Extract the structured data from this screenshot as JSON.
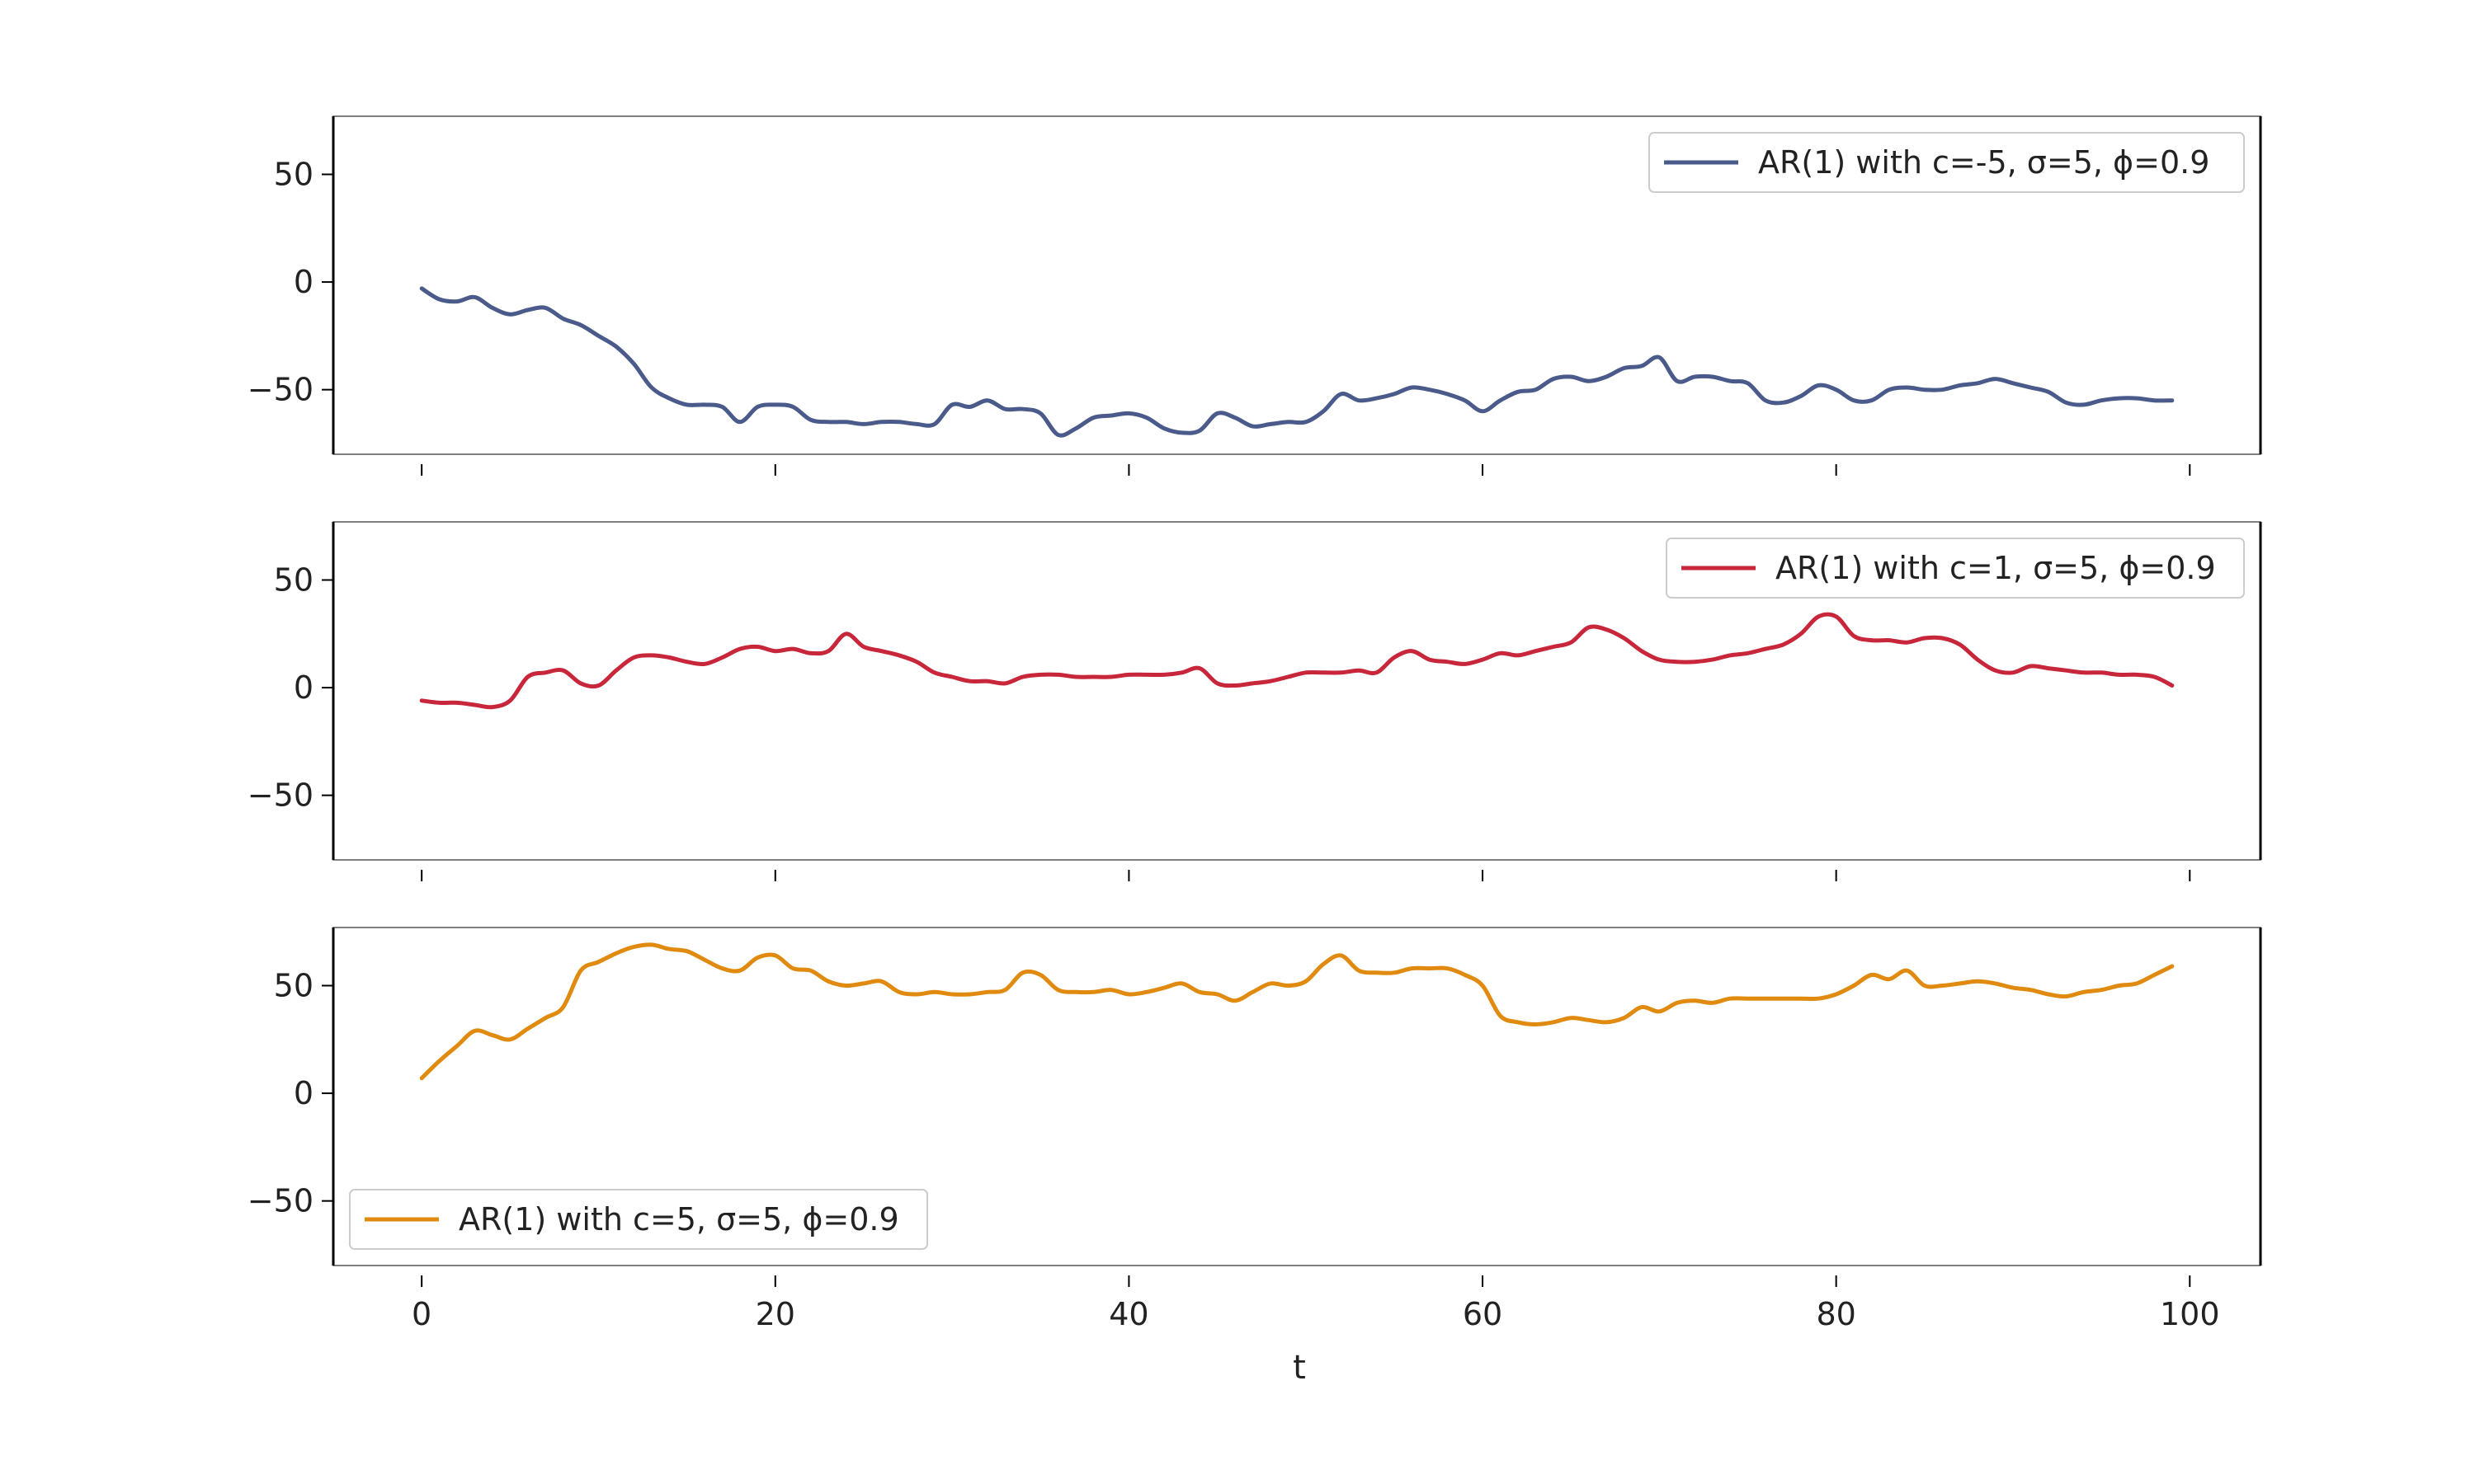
{
  "chart_data": {
    "type": "line",
    "layout": "3 stacked subplots, shared x axis",
    "xlabel": "t",
    "x_ticks": [
      0,
      20,
      40,
      60,
      80,
      100
    ],
    "x_tick_labels": [
      "0",
      "20",
      "40",
      "60",
      "80",
      "100"
    ],
    "xlim": [
      -5,
      104
    ],
    "ylim": [
      -80,
      77
    ],
    "y_ticks": [
      50,
      0,
      -50
    ],
    "y_tick_labels": [
      "50",
      "0",
      "−50"
    ],
    "grid": false,
    "series": [
      {
        "name": "AR(1) with c=-5, σ=5, ϕ=0.9",
        "color": "#4a5a8a",
        "legend_position": "upper-right",
        "x": [
          0,
          1,
          2,
          3,
          4,
          5,
          6,
          7,
          8,
          9,
          10,
          11,
          12,
          13,
          14,
          15,
          16,
          17,
          18,
          19,
          20,
          21,
          22,
          23,
          24,
          25,
          26,
          27,
          28,
          29,
          30,
          31,
          32,
          33,
          34,
          35,
          36,
          37,
          38,
          39,
          40,
          41,
          42,
          43,
          44,
          45,
          46,
          47,
          48,
          49,
          50,
          51,
          52,
          53,
          54,
          55,
          56,
          57,
          58,
          59,
          60,
          61,
          62,
          63,
          64,
          65,
          66,
          67,
          68,
          69,
          70,
          71,
          72,
          73,
          74,
          75,
          76,
          77,
          78,
          79,
          80,
          81,
          82,
          83,
          84,
          85,
          86,
          87,
          88,
          89,
          90,
          91,
          92,
          93,
          94,
          95,
          96,
          97,
          98,
          99
        ],
        "y": [
          -3,
          -8,
          -9,
          -7,
          -12,
          -15,
          -13,
          -12,
          -17,
          -20,
          -25,
          -30,
          -38,
          -49,
          -54,
          -57,
          -57,
          -58,
          -65,
          -58,
          -57,
          -58,
          -64,
          -65,
          -65,
          -66,
          -65,
          -65,
          -66,
          -66,
          -57,
          -58,
          -55,
          -59,
          -59,
          -61,
          -71,
          -68,
          -63,
          -62,
          -61,
          -63,
          -68,
          -70,
          -69,
          -61,
          -63,
          -67,
          -66,
          -65,
          -65,
          -60,
          -52,
          -55,
          -54,
          -52,
          -49,
          -50,
          -52,
          -55,
          -60,
          -55,
          -51,
          -50,
          -45,
          -44,
          -46,
          -44,
          -40,
          -39,
          -35,
          -46,
          -44,
          -44,
          -46,
          -47,
          -55,
          -56,
          -53,
          -48,
          -50,
          -55,
          -55,
          -50,
          -49,
          -50,
          -50,
          -48,
          -47,
          -45,
          -47,
          -49,
          -51,
          -56,
          -57,
          -55,
          -54,
          -54,
          -55,
          -55
        ]
      },
      {
        "name": "AR(1) with c=1, σ=5, ϕ=0.9",
        "color": "#c8263a",
        "legend_position": "upper-right",
        "x": [
          0,
          1,
          2,
          3,
          4,
          5,
          6,
          7,
          8,
          9,
          10,
          11,
          12,
          13,
          14,
          15,
          16,
          17,
          18,
          19,
          20,
          21,
          22,
          23,
          24,
          25,
          26,
          27,
          28,
          29,
          30,
          31,
          32,
          33,
          34,
          35,
          36,
          37,
          38,
          39,
          40,
          41,
          42,
          43,
          44,
          45,
          46,
          47,
          48,
          49,
          50,
          51,
          52,
          53,
          54,
          55,
          56,
          57,
          58,
          59,
          60,
          61,
          62,
          63,
          64,
          65,
          66,
          67,
          68,
          69,
          70,
          71,
          72,
          73,
          74,
          75,
          76,
          77,
          78,
          79,
          80,
          81,
          82,
          83,
          84,
          85,
          86,
          87,
          88,
          89,
          90,
          91,
          92,
          93,
          94,
          95,
          96,
          97,
          98,
          99
        ],
        "y": [
          -6,
          -7,
          -7,
          -8,
          -9,
          -6,
          5,
          7,
          8,
          2,
          1,
          8,
          14,
          15,
          14,
          12,
          11,
          14,
          18,
          19,
          17,
          18,
          16,
          17,
          25,
          19,
          17,
          15,
          12,
          7,
          5,
          3,
          3,
          2,
          5,
          6,
          6,
          5,
          5,
          5,
          6,
          6,
          6,
          7,
          9,
          2,
          1,
          2,
          3,
          5,
          7,
          7,
          7,
          8,
          7,
          14,
          17,
          13,
          12,
          11,
          13,
          16,
          15,
          17,
          19,
          21,
          28,
          27,
          23,
          17,
          13,
          12,
          12,
          13,
          15,
          16,
          18,
          20,
          25,
          33,
          33,
          24,
          22,
          22,
          21,
          23,
          23,
          20,
          13,
          8,
          7,
          10,
          9,
          8,
          7,
          7,
          6,
          6,
          5,
          1
        ]
      },
      {
        "name": "AR(1) with c=5, σ=5, ϕ=0.9",
        "color": "#e08a0f",
        "legend_position": "lower-left",
        "x": [
          0,
          1,
          2,
          3,
          4,
          5,
          6,
          7,
          8,
          9,
          10,
          11,
          12,
          13,
          14,
          15,
          16,
          17,
          18,
          19,
          20,
          21,
          22,
          23,
          24,
          25,
          26,
          27,
          28,
          29,
          30,
          31,
          32,
          33,
          34,
          35,
          36,
          37,
          38,
          39,
          40,
          41,
          42,
          43,
          44,
          45,
          46,
          47,
          48,
          49,
          50,
          51,
          52,
          53,
          54,
          55,
          56,
          57,
          58,
          59,
          60,
          61,
          62,
          63,
          64,
          65,
          66,
          67,
          68,
          69,
          70,
          71,
          72,
          73,
          74,
          75,
          76,
          77,
          78,
          79,
          80,
          81,
          82,
          83,
          84,
          85,
          86,
          87,
          88,
          89,
          90,
          91,
          92,
          93,
          94,
          95,
          96,
          97,
          98,
          99
        ],
        "y": [
          7,
          15,
          22,
          29,
          27,
          25,
          30,
          35,
          40,
          57,
          61,
          65,
          68,
          69,
          67,
          66,
          62,
          58,
          57,
          63,
          64,
          58,
          57,
          52,
          50,
          51,
          52,
          47,
          46,
          47,
          46,
          46,
          47,
          48,
          56,
          55,
          48,
          47,
          47,
          48,
          46,
          47,
          49,
          51,
          47,
          46,
          43,
          47,
          51,
          50,
          52,
          60,
          64,
          57,
          56,
          56,
          58,
          58,
          58,
          55,
          50,
          36,
          33,
          32,
          33,
          35,
          34,
          33,
          35,
          40,
          38,
          42,
          43,
          42,
          44,
          44,
          44,
          44,
          44,
          44,
          46,
          50,
          55,
          53,
          57,
          50,
          50,
          51,
          52,
          51,
          49,
          48,
          46,
          45,
          47,
          48,
          50,
          51,
          55,
          59
        ]
      }
    ]
  }
}
